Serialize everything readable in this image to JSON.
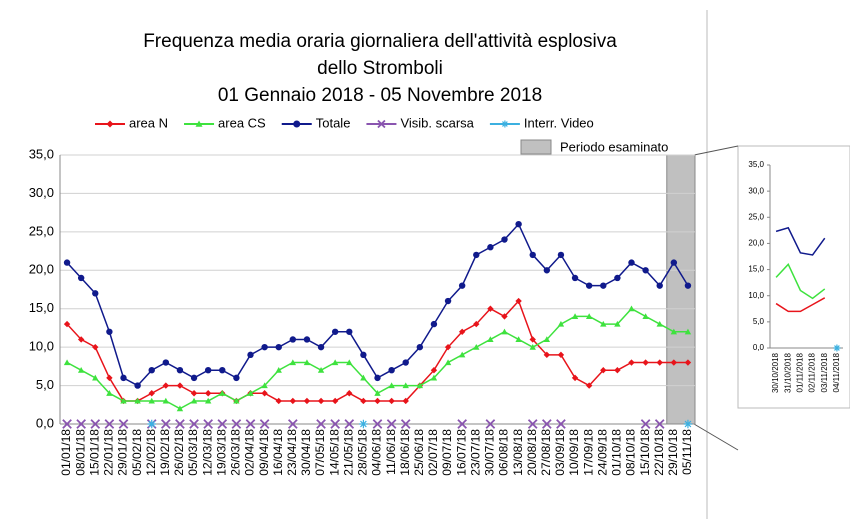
{
  "chart_data": [
    {
      "type": "line",
      "title": [
        "Frequenza media oraria giornaliera dell'attività esplosiva",
        "dello Stromboli",
        "01 Gennaio 2018 - 05 Novembre 2018"
      ],
      "annotation": "Periodo esaminato",
      "highlight_from": "29/10/18",
      "grid": true,
      "categories": [
        "01/01/18",
        "08/01/18",
        "15/01/18",
        "22/01/18",
        "29/01/18",
        "05/02/18",
        "12/02/18",
        "19/02/18",
        "26/02/18",
        "05/03/18",
        "12/03/18",
        "19/03/18",
        "26/03/18",
        "02/04/18",
        "09/04/18",
        "16/04/18",
        "23/04/18",
        "30/04/18",
        "07/05/18",
        "14/05/18",
        "21/05/18",
        "28/05/18",
        "04/06/18",
        "11/06/18",
        "18/06/18",
        "25/06/18",
        "02/07/18",
        "09/07/18",
        "16/07/18",
        "23/07/18",
        "30/07/18",
        "06/08/18",
        "13/08/18",
        "20/08/18",
        "27/08/18",
        "03/09/18",
        "10/09/18",
        "17/09/18",
        "24/09/18",
        "01/10/18",
        "08/10/18",
        "15/10/18",
        "22/10/18",
        "29/10/18",
        "05/11/18"
      ],
      "ylim": [
        0,
        35
      ],
      "yticks": [
        {
          "value": 0,
          "label": "0,0"
        },
        {
          "value": 5,
          "label": "5,0"
        },
        {
          "value": 10,
          "label": "10,0"
        },
        {
          "value": 15,
          "label": "15,0"
        },
        {
          "value": 20,
          "label": "20,0"
        },
        {
          "value": 25,
          "label": "25,0"
        },
        {
          "value": 30,
          "label": "30,0"
        },
        {
          "value": 35,
          "label": "35,0"
        }
      ],
      "series": [
        {
          "name": "area N",
          "color": "#e8141b",
          "marker": "diamond",
          "line": true,
          "values": [
            13,
            11,
            10,
            6,
            3,
            3,
            4,
            5,
            5,
            4,
            4,
            4,
            3,
            4,
            4,
            3,
            3,
            3,
            3,
            3,
            4,
            3,
            3,
            3,
            3,
            5,
            7,
            10,
            12,
            13,
            15,
            14,
            16,
            11,
            9,
            9,
            6,
            5,
            7,
            7,
            8,
            8,
            8,
            8,
            8
          ]
        },
        {
          "name": "area CS",
          "color": "#3ee23e",
          "marker": "triangle",
          "line": true,
          "values": [
            8,
            7,
            6,
            4,
            3,
            3,
            3,
            3,
            2,
            3,
            3,
            4,
            3,
            4,
            5,
            7,
            8,
            8,
            7,
            8,
            8,
            6,
            4,
            5,
            5,
            5,
            6,
            8,
            9,
            10,
            11,
            12,
            11,
            10,
            11,
            13,
            14,
            14,
            13,
            13,
            15,
            14,
            13,
            12,
            12
          ]
        },
        {
          "name": "Totale",
          "color": "#101a8c",
          "marker": "circle",
          "line": true,
          "values": [
            21,
            19,
            17,
            12,
            6,
            5,
            7,
            8,
            7,
            6,
            7,
            7,
            6,
            9,
            10,
            10,
            11,
            11,
            10,
            12,
            12,
            9,
            6,
            7,
            8,
            10,
            13,
            16,
            18,
            22,
            23,
            24,
            26,
            22,
            20,
            22,
            19,
            18,
            18,
            19,
            21,
            20,
            18,
            21,
            18
          ]
        },
        {
          "name": "Visib. scarsa",
          "color": "#8a55b0",
          "marker": "x",
          "line": false,
          "values": [
            0,
            0,
            0,
            0,
            0,
            null,
            0,
            0,
            0,
            0,
            0,
            0,
            0,
            0,
            0,
            null,
            0,
            null,
            0,
            0,
            0,
            null,
            0,
            0,
            0,
            null,
            null,
            null,
            0,
            null,
            0,
            null,
            null,
            0,
            0,
            0,
            null,
            null,
            null,
            null,
            null,
            0,
            0,
            null,
            null
          ]
        },
        {
          "name": "Interr. Video",
          "color": "#3cb0e0",
          "marker": "asterisk",
          "line": false,
          "values": [
            null,
            null,
            null,
            null,
            null,
            null,
            0,
            null,
            null,
            null,
            null,
            null,
            null,
            null,
            null,
            null,
            null,
            null,
            null,
            null,
            null,
            0,
            null,
            null,
            null,
            null,
            null,
            null,
            null,
            null,
            null,
            null,
            null,
            null,
            null,
            null,
            null,
            null,
            null,
            null,
            null,
            null,
            null,
            null,
            0
          ]
        }
      ]
    },
    {
      "type": "line",
      "grid": false,
      "categories": [
        "30/10/2018",
        "31/10/2018",
        "01/11/2018",
        "02/11/2018",
        "03/11/2018",
        "04/11/2018"
      ],
      "ylim": [
        0,
        35
      ],
      "yticks": [
        {
          "value": 0,
          "label": "0,0"
        },
        {
          "value": 5,
          "label": "5,0"
        },
        {
          "value": 10,
          "label": "10,0"
        },
        {
          "value": 15,
          "label": "15,0"
        },
        {
          "value": 20,
          "label": "20,0"
        },
        {
          "value": 25,
          "label": "25,0"
        },
        {
          "value": 30,
          "label": "30,0"
        },
        {
          "value": 35,
          "label": "35,0"
        }
      ],
      "series": [
        {
          "color": "#e8141b",
          "line": true,
          "values": [
            8.5,
            7,
            7,
            8.3,
            9.6,
            null
          ]
        },
        {
          "color": "#3ee23e",
          "line": true,
          "values": [
            13.5,
            16,
            11,
            9.5,
            11.3,
            null
          ]
        },
        {
          "color": "#101a8c",
          "line": true,
          "values": [
            22.3,
            23,
            18.2,
            17.8,
            21,
            null
          ]
        },
        {
          "color": "#3cb0e0",
          "marker": "asterisk",
          "line": false,
          "values": [
            null,
            null,
            null,
            null,
            null,
            0
          ]
        }
      ]
    }
  ]
}
